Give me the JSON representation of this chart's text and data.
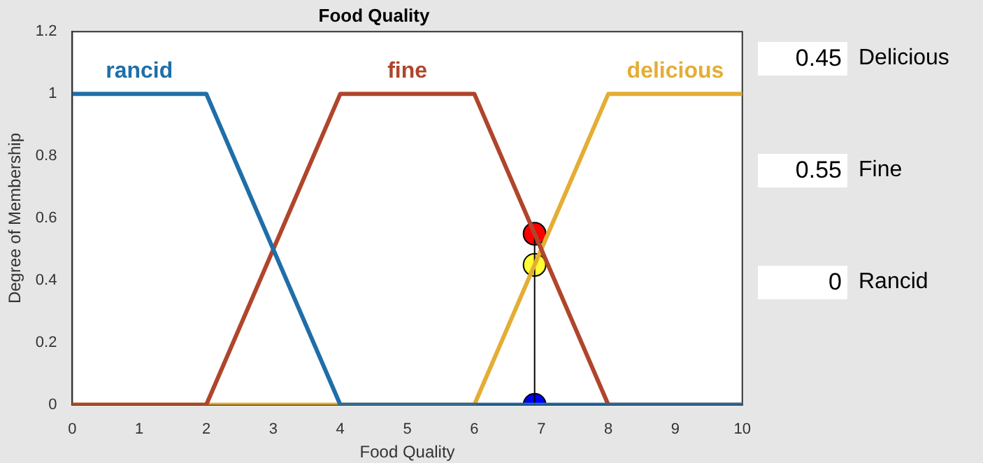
{
  "chart_data": {
    "type": "line",
    "title": "Food Quality",
    "xlabel": "Food Quality",
    "ylabel": "Degree of Membership",
    "xlim": [
      0,
      10
    ],
    "ylim": [
      0,
      1.2
    ],
    "xticks": [
      0,
      1,
      2,
      3,
      4,
      5,
      6,
      7,
      8,
      9,
      10
    ],
    "yticks": [
      0,
      0.2,
      0.4,
      0.6,
      0.8,
      1,
      1.2
    ],
    "grid": false,
    "legend": false,
    "annotations": [
      "0.45",
      "Delicious",
      "0.55",
      "Fine",
      "0",
      "Rancid"
    ],
    "series": [
      {
        "name": "rancid",
        "color": "#1f6ea8",
        "x": [
          0,
          2,
          4,
          10
        ],
        "values": [
          1,
          1,
          0,
          0
        ]
      },
      {
        "name": "fine",
        "color": "#b0452c",
        "x": [
          0,
          2,
          4,
          6,
          8,
          10
        ],
        "values": [
          0,
          0,
          1,
          1,
          0,
          0
        ]
      },
      {
        "name": "delicious",
        "color": "#e4ad34",
        "x": [
          0,
          6,
          8,
          10
        ],
        "values": [
          0,
          0,
          1,
          1
        ]
      },
      {
        "color": "#000000",
        "x": [
          6.9,
          6.9
        ],
        "values": [
          0,
          0.55
        ]
      },
      {
        "type": "scatter",
        "marker": "circle",
        "x": [
          6.9,
          6.9,
          6.9
        ],
        "values": [
          0.55,
          0.45,
          0
        ],
        "colors": [
          "#ff0000",
          "#ffff33",
          "#0000ff"
        ]
      }
    ]
  }
}
